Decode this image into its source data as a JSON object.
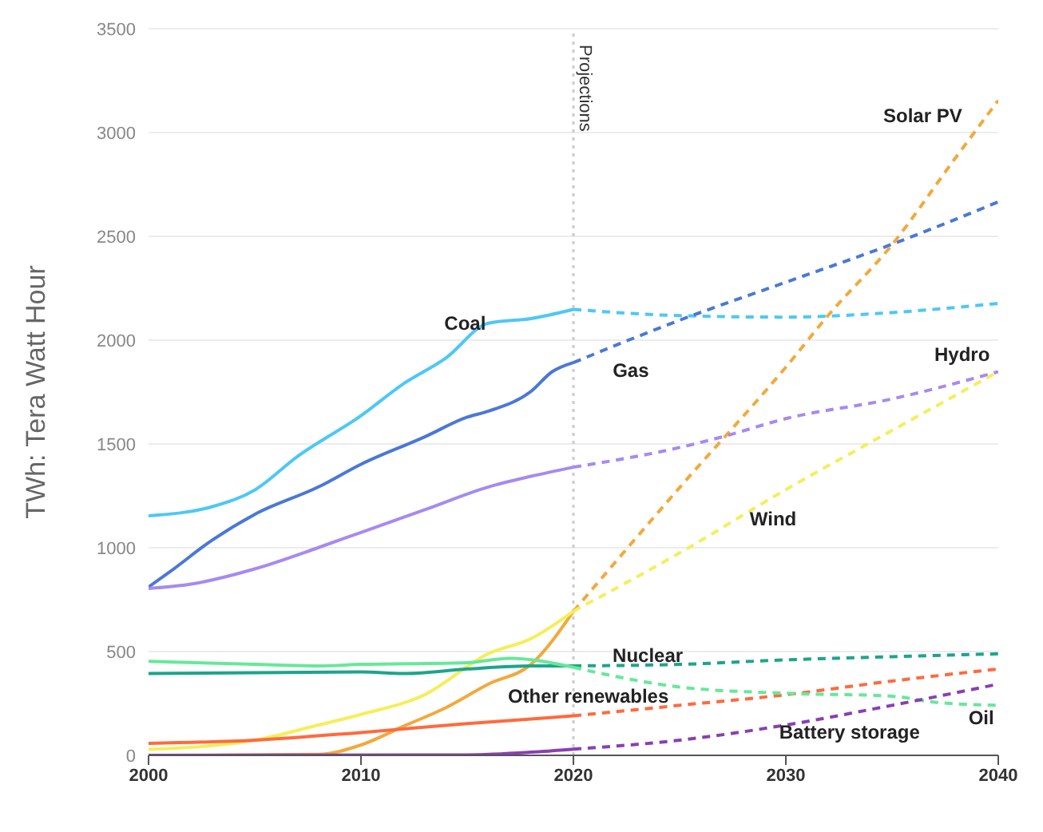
{
  "chart_data": {
    "type": "line",
    "ylabel": "TWh: Tera Watt Hour",
    "xlim": [
      2000,
      2040
    ],
    "xticks": [
      2000,
      2010,
      2020,
      2030,
      2040
    ],
    "ylim": [
      0,
      3500
    ],
    "yticks": [
      0,
      500,
      1000,
      1500,
      2000,
      2500,
      3000,
      3500
    ],
    "grid": "y",
    "marker": "none",
    "line_style": "solid",
    "ref_lines": [
      {
        "axis": "x",
        "value": 2020,
        "label": "Projections",
        "color": "#cccccc",
        "line_style": "dotted"
      }
    ],
    "series": [
      {
        "name": "Coal",
        "color": "#4dc8f5",
        "x": [
          2000,
          2003,
          2005,
          2007,
          2010,
          2012,
          2014,
          2016,
          2018,
          2020
        ],
        "values": [
          1154,
          1198,
          1278,
          1439,
          1636,
          1790,
          1914,
          2082,
          2104,
          2148
        ]
      },
      {
        "color": "#4dc8f5",
        "line_style": "dashed",
        "x": [
          2020,
          2025,
          2030,
          2035,
          2040
        ],
        "values": [
          2148,
          2118,
          2111,
          2133,
          2177
        ]
      },
      {
        "color": "#4a78d8",
        "x": [
          2000,
          2001,
          2003,
          2005,
          2008,
          2010,
          2013,
          2015,
          2016,
          2018,
          2019,
          2020
        ],
        "values": [
          811,
          884,
          1037,
          1161,
          1293,
          1402,
          1534,
          1629,
          1658,
          1753,
          1848,
          1892
        ]
      },
      {
        "name": "Gas",
        "color": "#4a78d8",
        "line_style": "dashed",
        "x": [
          2020,
          2025,
          2030,
          2035,
          2040
        ],
        "values": [
          1892,
          2096,
          2279,
          2462,
          2666
        ]
      },
      {
        "color": "#f2a93b",
        "x": [
          2000,
          2008,
          2010,
          2012,
          2014,
          2016,
          2018,
          2020
        ],
        "values": [
          0,
          5,
          50,
          140,
          230,
          343,
          438,
          694
        ]
      },
      {
        "name": "Solar PV",
        "color": "#f2a93b",
        "line_style": "dashed",
        "x": [
          2020,
          2025,
          2030,
          2032,
          2035,
          2038,
          2040
        ],
        "values": [
          694,
          1290,
          1870,
          2120,
          2460,
          2880,
          3155
        ]
      },
      {
        "color": "#a68af0",
        "x": [
          2000,
          2002,
          2005,
          2008,
          2010,
          2013,
          2016,
          2018,
          2020
        ],
        "values": [
          804,
          825,
          898,
          1001,
          1074,
          1183,
          1293,
          1344,
          1388
        ]
      },
      {
        "name": "Hydro",
        "color": "#a68af0",
        "line_style": "dashed",
        "x": [
          2020,
          2025,
          2027,
          2030,
          2035,
          2040
        ],
        "values": [
          1388,
          1483,
          1534,
          1622,
          1717,
          1848
        ]
      },
      {
        "color": "#f5ee5a",
        "x": [
          2000,
          2005,
          2008,
          2010,
          2013,
          2016,
          2018,
          2020
        ],
        "values": [
          29,
          73,
          146,
          197,
          292,
          490,
          562,
          694
        ]
      },
      {
        "name": "Wind",
        "color": "#f5ee5a",
        "line_style": "dashed",
        "x": [
          2020,
          2025,
          2030,
          2035,
          2040
        ],
        "values": [
          694,
          975,
          1280,
          1565,
          1848
        ]
      },
      {
        "color": "#1ca58c",
        "x": [
          2000,
          2010,
          2012,
          2015,
          2018,
          2020
        ],
        "values": [
          394,
          402,
          394,
          416,
          431,
          431
        ]
      },
      {
        "name": "Nuclear",
        "color": "#1ca58c",
        "line_style": "dashed",
        "x": [
          2020,
          2025,
          2030,
          2035,
          2040
        ],
        "values": [
          431,
          438,
          460,
          475,
          489
        ]
      },
      {
        "color": "#ff6a3d",
        "x": [
          2000,
          2005,
          2010,
          2015,
          2018,
          2020
        ],
        "values": [
          58,
          73,
          110,
          153,
          175,
          190
        ]
      },
      {
        "name": "Other renewables",
        "color": "#ff6a3d",
        "line_style": "dashed",
        "x": [
          2020,
          2025,
          2030,
          2035,
          2040
        ],
        "values": [
          190,
          241,
          292,
          358,
          416
        ]
      },
      {
        "color": "#66e89a",
        "x": [
          2000,
          2005,
          2008,
          2010,
          2015,
          2017,
          2020
        ],
        "values": [
          453,
          438,
          431,
          438,
          446,
          467,
          424
        ]
      },
      {
        "name": "Oil",
        "color": "#66e89a",
        "line_style": "dashed",
        "x": [
          2020,
          2022,
          2025,
          2030,
          2035,
          2037,
          2040
        ],
        "values": [
          424,
          380,
          329,
          299,
          285,
          256,
          241
        ]
      },
      {
        "color": "#8a3fb0",
        "x": [
          2000,
          2015,
          2018,
          2020
        ],
        "values": [
          0,
          2,
          15,
          30
        ]
      },
      {
        "name": "Battery storage",
        "color": "#8a3fb0",
        "line_style": "dashed",
        "x": [
          2020,
          2025,
          2030,
          2035,
          2040
        ],
        "values": [
          30,
          73,
          146,
          241,
          343
        ]
      }
    ]
  }
}
